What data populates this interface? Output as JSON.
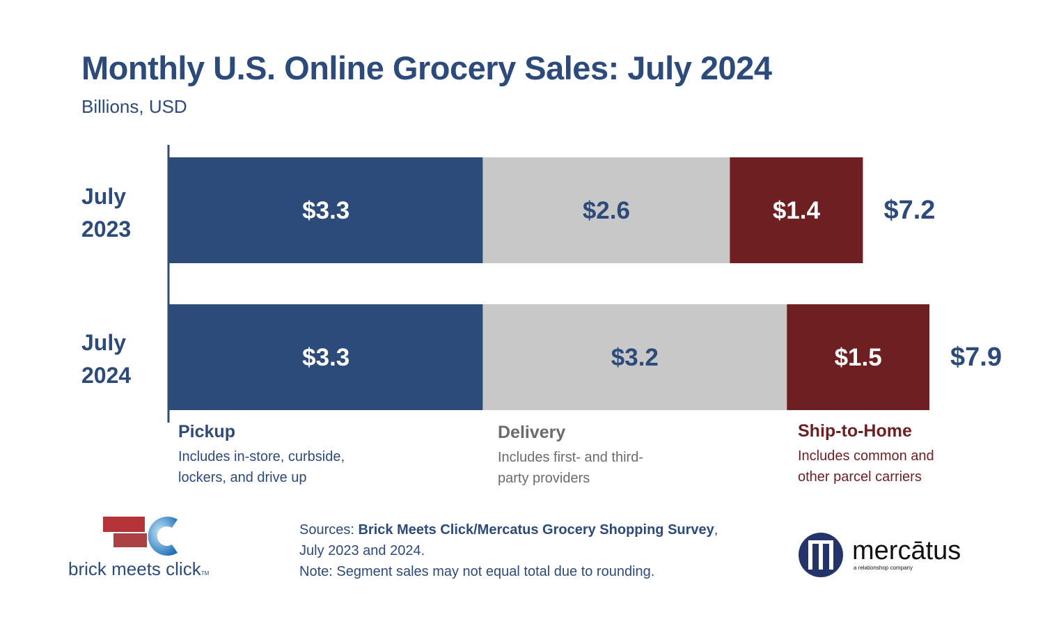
{
  "chart_data": {
    "type": "bar",
    "orientation": "horizontal",
    "stacked": true,
    "title": "Monthly U.S. Online Grocery Sales: July 2024",
    "subtitle": "Billions, USD",
    "categories": [
      [
        "July",
        "2023"
      ],
      [
        "July",
        "2024"
      ]
    ],
    "series": [
      {
        "name": "Pickup",
        "values": [
          3.3,
          3.3
        ],
        "labels": [
          "$3.3",
          "$3.3"
        ],
        "color": "#2c4a7a",
        "label_color": "#ffffff"
      },
      {
        "name": "Delivery",
        "values": [
          2.6,
          3.2
        ],
        "labels": [
          "$2.6",
          "$3.2"
        ],
        "color": "#c8c8c8",
        "label_color": "#2c4a7a"
      },
      {
        "name": "Ship-to-Home",
        "values": [
          1.4,
          1.5
        ],
        "labels": [
          "$1.4",
          "$1.5"
        ],
        "color": "#6e1f22",
        "label_color": "#ffffff"
      }
    ],
    "totals": [
      7.2,
      7.9
    ],
    "total_labels": [
      "$7.2",
      "$7.9"
    ],
    "grid": false,
    "legend_placement": "bottom"
  },
  "legend": [
    {
      "title": "Pickup",
      "desc": [
        "Includes in-store, curbside,",
        "lockers, and drive up"
      ],
      "color": "#2c4a7a"
    },
    {
      "title": "Delivery",
      "desc": [
        "Includes first- and third-",
        "party providers"
      ],
      "color": "#6b6b6b"
    },
    {
      "title": "Ship-to-Home",
      "desc": [
        "Includes common and",
        "other parcel carriers"
      ],
      "color": "#6e1f22"
    }
  ],
  "footer": {
    "sources_prefix": "Sources: ",
    "sources_bold": "Brick Meets Click/Mercatus Grocery Shopping Survey",
    "sources_suffix": ",",
    "line2": "July 2023 and 2024.",
    "note": "Note: Segment sales may not equal total due to rounding."
  },
  "logos": {
    "left": "brick meets click",
    "left_tm": "TM",
    "right": "mercātus",
    "right_tagline": "a relationshop company"
  }
}
